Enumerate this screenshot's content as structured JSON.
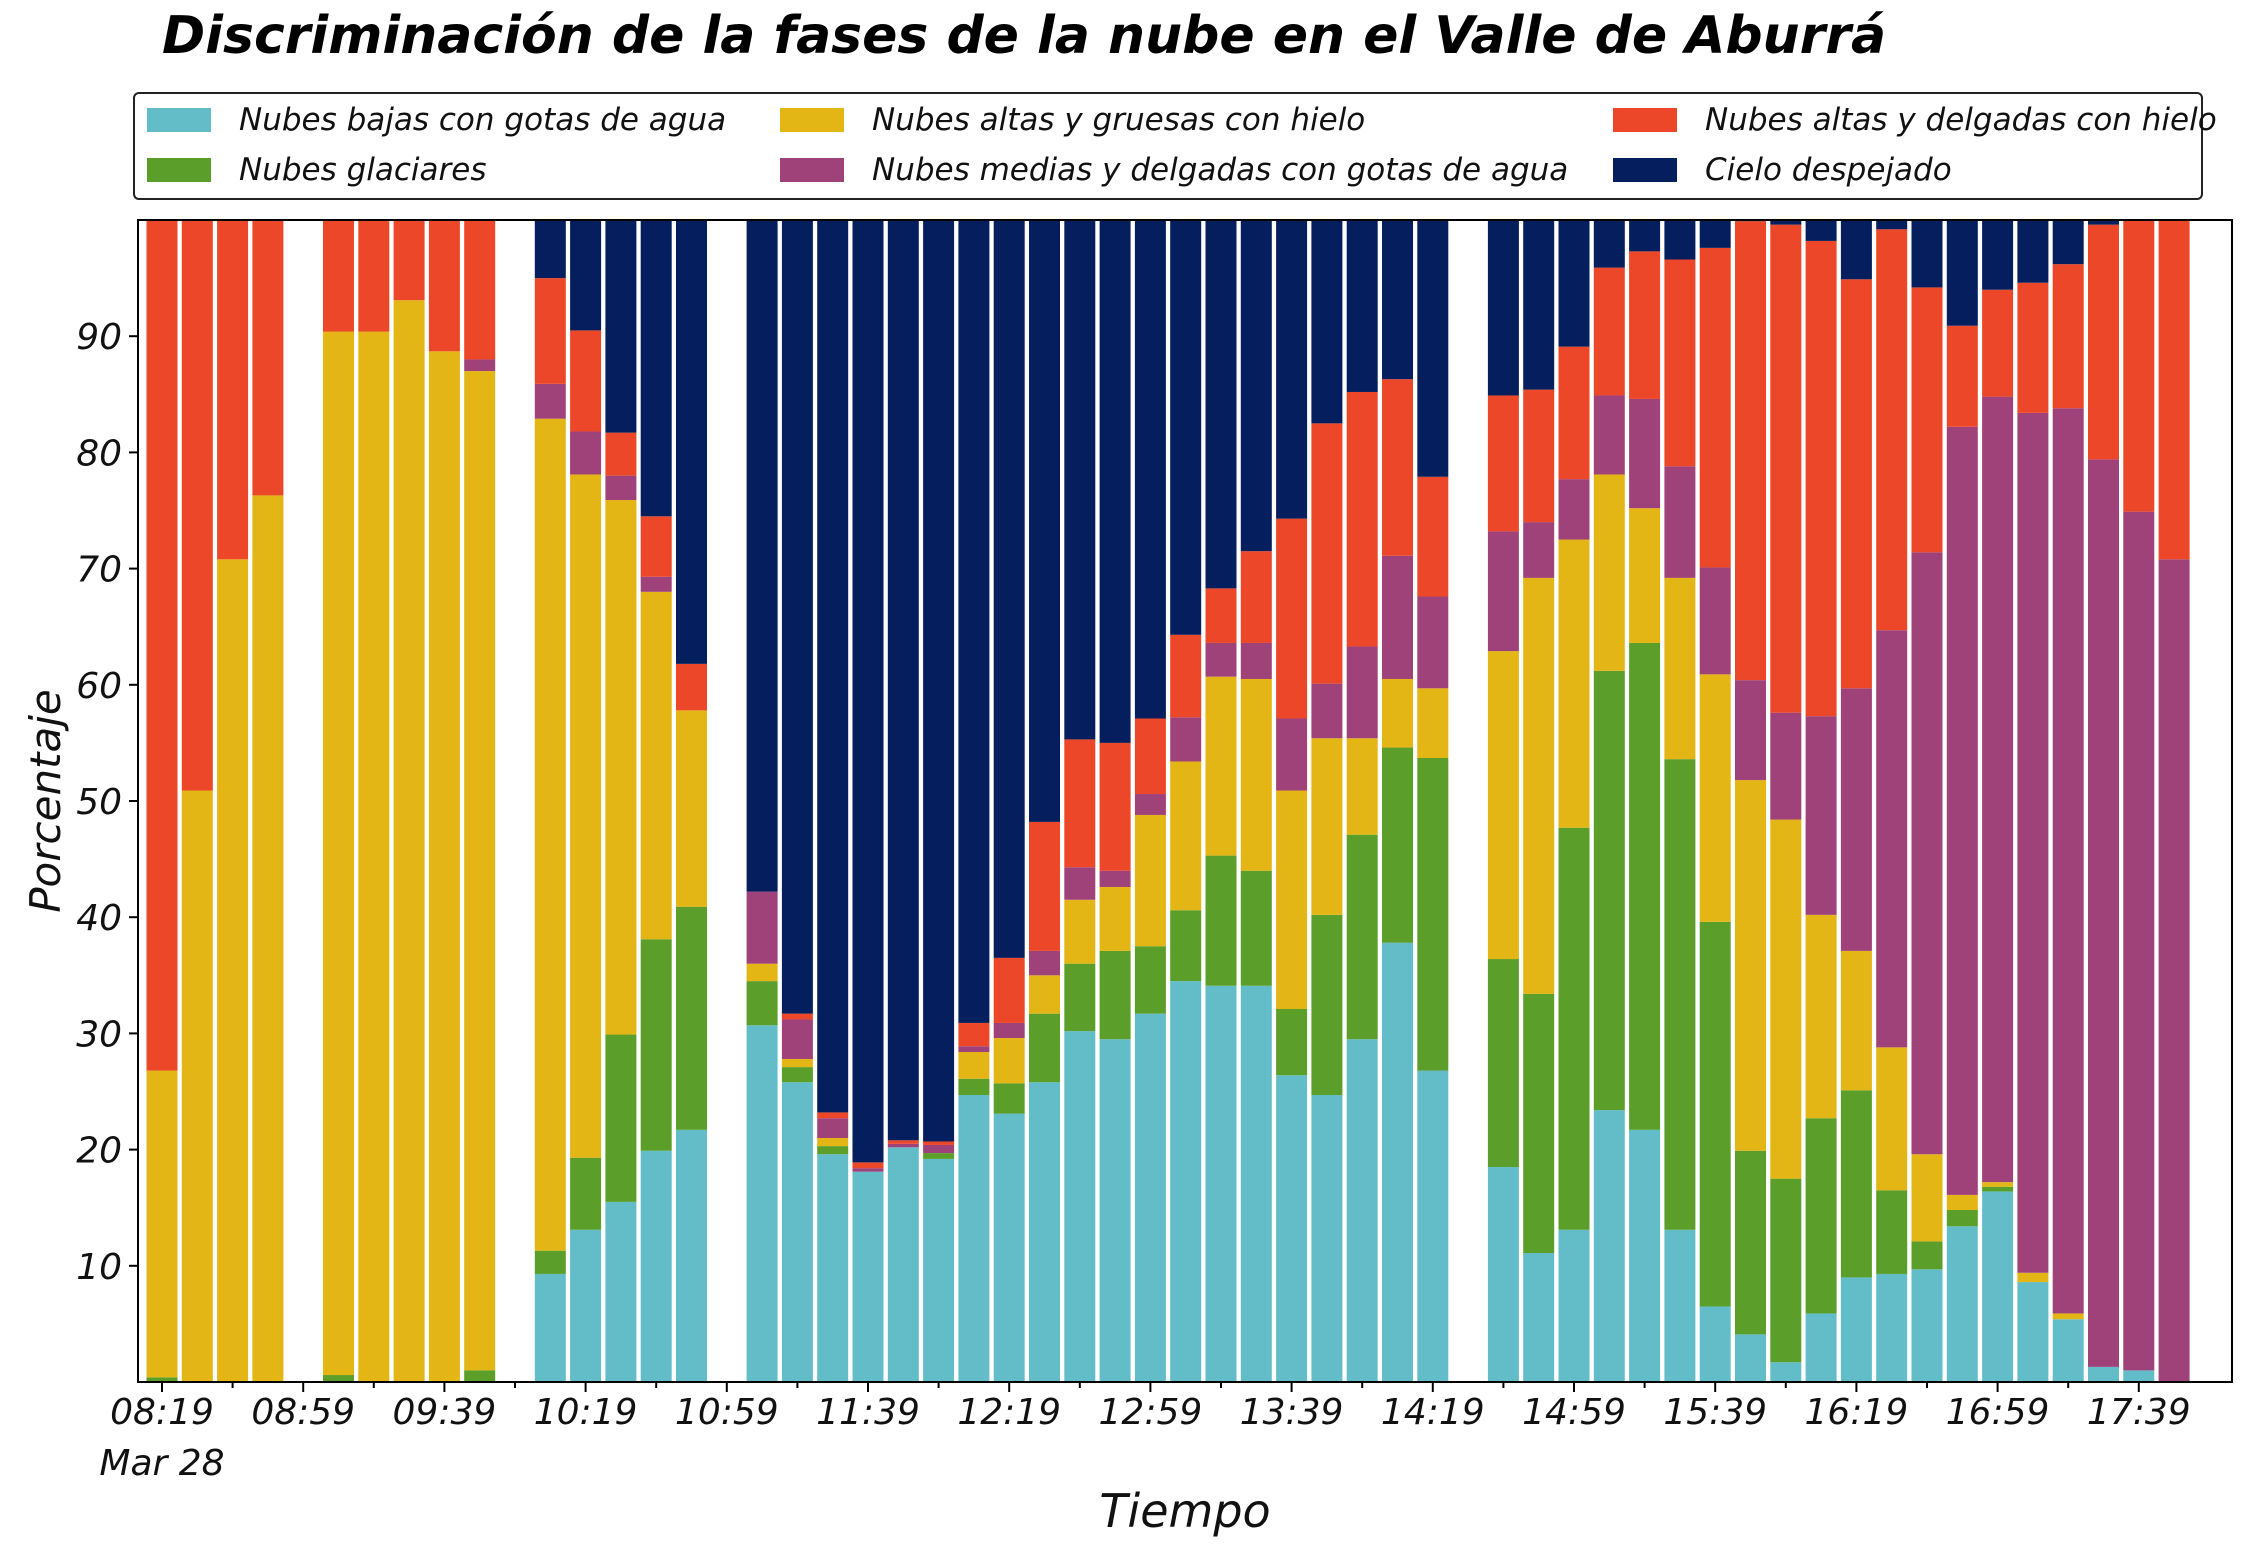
{
  "chart_data": {
    "type": "bar",
    "stacked": true,
    "title": "Discriminación de la fases de la nube en el Valle de Aburrá",
    "xlabel": "Tiempo",
    "ylabel": "Porcentaje",
    "ylim": [
      0,
      100
    ],
    "yticks": [
      10,
      20,
      30,
      40,
      50,
      60,
      70,
      80,
      90
    ],
    "grid": false,
    "legend_position": "top",
    "xticks": [
      {
        "index": 0,
        "label": "08:19"
      },
      {
        "index": 4,
        "label": "08:59"
      },
      {
        "index": 8,
        "label": "09:39"
      },
      {
        "index": 12,
        "label": "10:19"
      },
      {
        "index": 16,
        "label": "10:59"
      },
      {
        "index": 20,
        "label": "11:39"
      },
      {
        "index": 24,
        "label": "12:19"
      },
      {
        "index": 28,
        "label": "12:59"
      },
      {
        "index": 32,
        "label": "13:39"
      },
      {
        "index": 36,
        "label": "14:19"
      },
      {
        "index": 40,
        "label": "14:59"
      },
      {
        "index": 44,
        "label": "15:39"
      },
      {
        "index": 48,
        "label": "16:19"
      },
      {
        "index": 52,
        "label": "16:59"
      },
      {
        "index": 56,
        "label": "17:39"
      }
    ],
    "xdate_label": "Mar 28",
    "slots": 58,
    "series": [
      {
        "name": "Nubes bajas con gotas de agua",
        "color": "#63BDC9",
        "values": [
          0,
          0,
          0,
          0,
          null,
          0,
          0,
          0,
          0,
          0,
          null,
          9.3,
          13.1,
          15.5,
          19.9,
          21.7,
          null,
          30.7,
          25.8,
          19.6,
          18.1,
          20.2,
          19.2,
          24.7,
          23.1,
          25.8,
          30.2,
          29.5,
          31.7,
          34.5,
          34.1,
          34.1,
          26.4,
          24.7,
          29.5,
          37.8,
          26.8,
          null,
          18.5,
          11.1,
          13.1,
          23.4,
          21.7,
          13.1,
          6.5,
          4.1,
          1.7,
          5.9,
          9.0,
          9.3,
          9.7,
          13.4,
          16.4,
          8.6,
          5.4,
          1.3,
          1.0,
          0
        ]
      },
      {
        "name": "Nubes glaciares",
        "color": "#5B9E29",
        "values": [
          0.4,
          0,
          0,
          0,
          null,
          0.6,
          0,
          0,
          0,
          1.0,
          null,
          2.0,
          6.2,
          14.4,
          18.2,
          19.2,
          null,
          3.8,
          1.3,
          0.7,
          0,
          0,
          0.5,
          1.4,
          2.6,
          5.9,
          5.8,
          7.6,
          5.8,
          6.1,
          11.2,
          9.9,
          5.7,
          15.5,
          17.6,
          16.8,
          26.9,
          null,
          17.9,
          22.3,
          34.6,
          37.8,
          41.9,
          40.5,
          33.1,
          15.8,
          15.8,
          16.8,
          16.1,
          7.2,
          2.4,
          1.4,
          0.4,
          0,
          0,
          0,
          0,
          0
        ]
      },
      {
        "name": "Nubes altas y gruesas con hielo",
        "color": "#E3B515",
        "values": [
          26.4,
          50.9,
          70.8,
          76.3,
          null,
          89.8,
          90.4,
          93.1,
          88.7,
          86.0,
          null,
          71.6,
          58.8,
          46.0,
          29.9,
          16.9,
          null,
          1.5,
          0.7,
          0.7,
          0,
          0,
          0,
          2.3,
          3.9,
          3.3,
          5.5,
          5.5,
          11.3,
          12.8,
          15.4,
          16.5,
          18.8,
          15.2,
          8.3,
          5.9,
          6.0,
          null,
          26.5,
          35.8,
          24.8,
          16.9,
          11.6,
          15.6,
          21.3,
          31.9,
          30.9,
          17.5,
          12.0,
          12.3,
          7.5,
          1.3,
          0.4,
          0.8,
          0.5,
          0,
          0,
          0
        ]
      },
      {
        "name": "Nubes medias y delgadas con gotas de agua",
        "color": "#A0427A",
        "values": [
          0,
          0,
          0,
          0,
          null,
          0,
          0,
          0,
          0,
          1.0,
          null,
          3.0,
          3.7,
          2.1,
          1.3,
          0,
          null,
          6.2,
          3.4,
          1.7,
          0.3,
          0.3,
          0.7,
          0.5,
          1.3,
          2.1,
          2.8,
          1.4,
          1.8,
          3.8,
          2.9,
          3.1,
          6.2,
          4.7,
          7.9,
          10.6,
          7.9,
          null,
          10.3,
          4.8,
          5.2,
          6.8,
          9.4,
          9.6,
          9.2,
          8.6,
          9.2,
          17.1,
          22.6,
          35.9,
          51.8,
          66.1,
          67.6,
          74.0,
          77.9,
          78.1,
          73.9,
          70.8
        ]
      },
      {
        "name": "Nubes altas y delgadas con hielo",
        "color": "#EC4728",
        "values": [
          73.2,
          49.1,
          29.2,
          23.7,
          null,
          9.6,
          9.6,
          6.9,
          11.3,
          12.0,
          null,
          9.1,
          8.7,
          3.7,
          5.2,
          4.0,
          null,
          0,
          0.5,
          0.5,
          0.5,
          0.3,
          0.3,
          2.0,
          5.6,
          11.1,
          11.0,
          11.0,
          6.5,
          7.1,
          4.7,
          7.9,
          17.2,
          22.4,
          21.9,
          15.2,
          10.3,
          null,
          11.7,
          11.4,
          11.4,
          11.0,
          12.7,
          17.8,
          27.5,
          39.5,
          42.0,
          40.9,
          35.2,
          34.5,
          22.8,
          8.7,
          9.2,
          11.2,
          12.4,
          20.2,
          25.1,
          29.2
        ]
      },
      {
        "name": "Cielo despejado",
        "color": "#051E5D",
        "values": [
          0,
          0,
          0,
          0,
          null,
          0,
          0,
          0,
          0,
          0,
          null,
          5.0,
          9.5,
          18.3,
          25.5,
          38.2,
          null,
          57.8,
          68.3,
          76.8,
          81.1,
          79.2,
          79.3,
          69.1,
          63.5,
          51.8,
          44.7,
          45.0,
          42.9,
          35.7,
          31.7,
          28.5,
          25.7,
          17.5,
          14.8,
          13.7,
          22.1,
          null,
          15.1,
          14.6,
          10.9,
          4.1,
          2.7,
          3.4,
          2.5,
          0.1,
          0.4,
          1.8,
          5.1,
          5.8,
          5.8,
          9.1,
          6.0,
          5.4,
          3.8,
          0.4,
          0,
          0
        ]
      }
    ]
  }
}
